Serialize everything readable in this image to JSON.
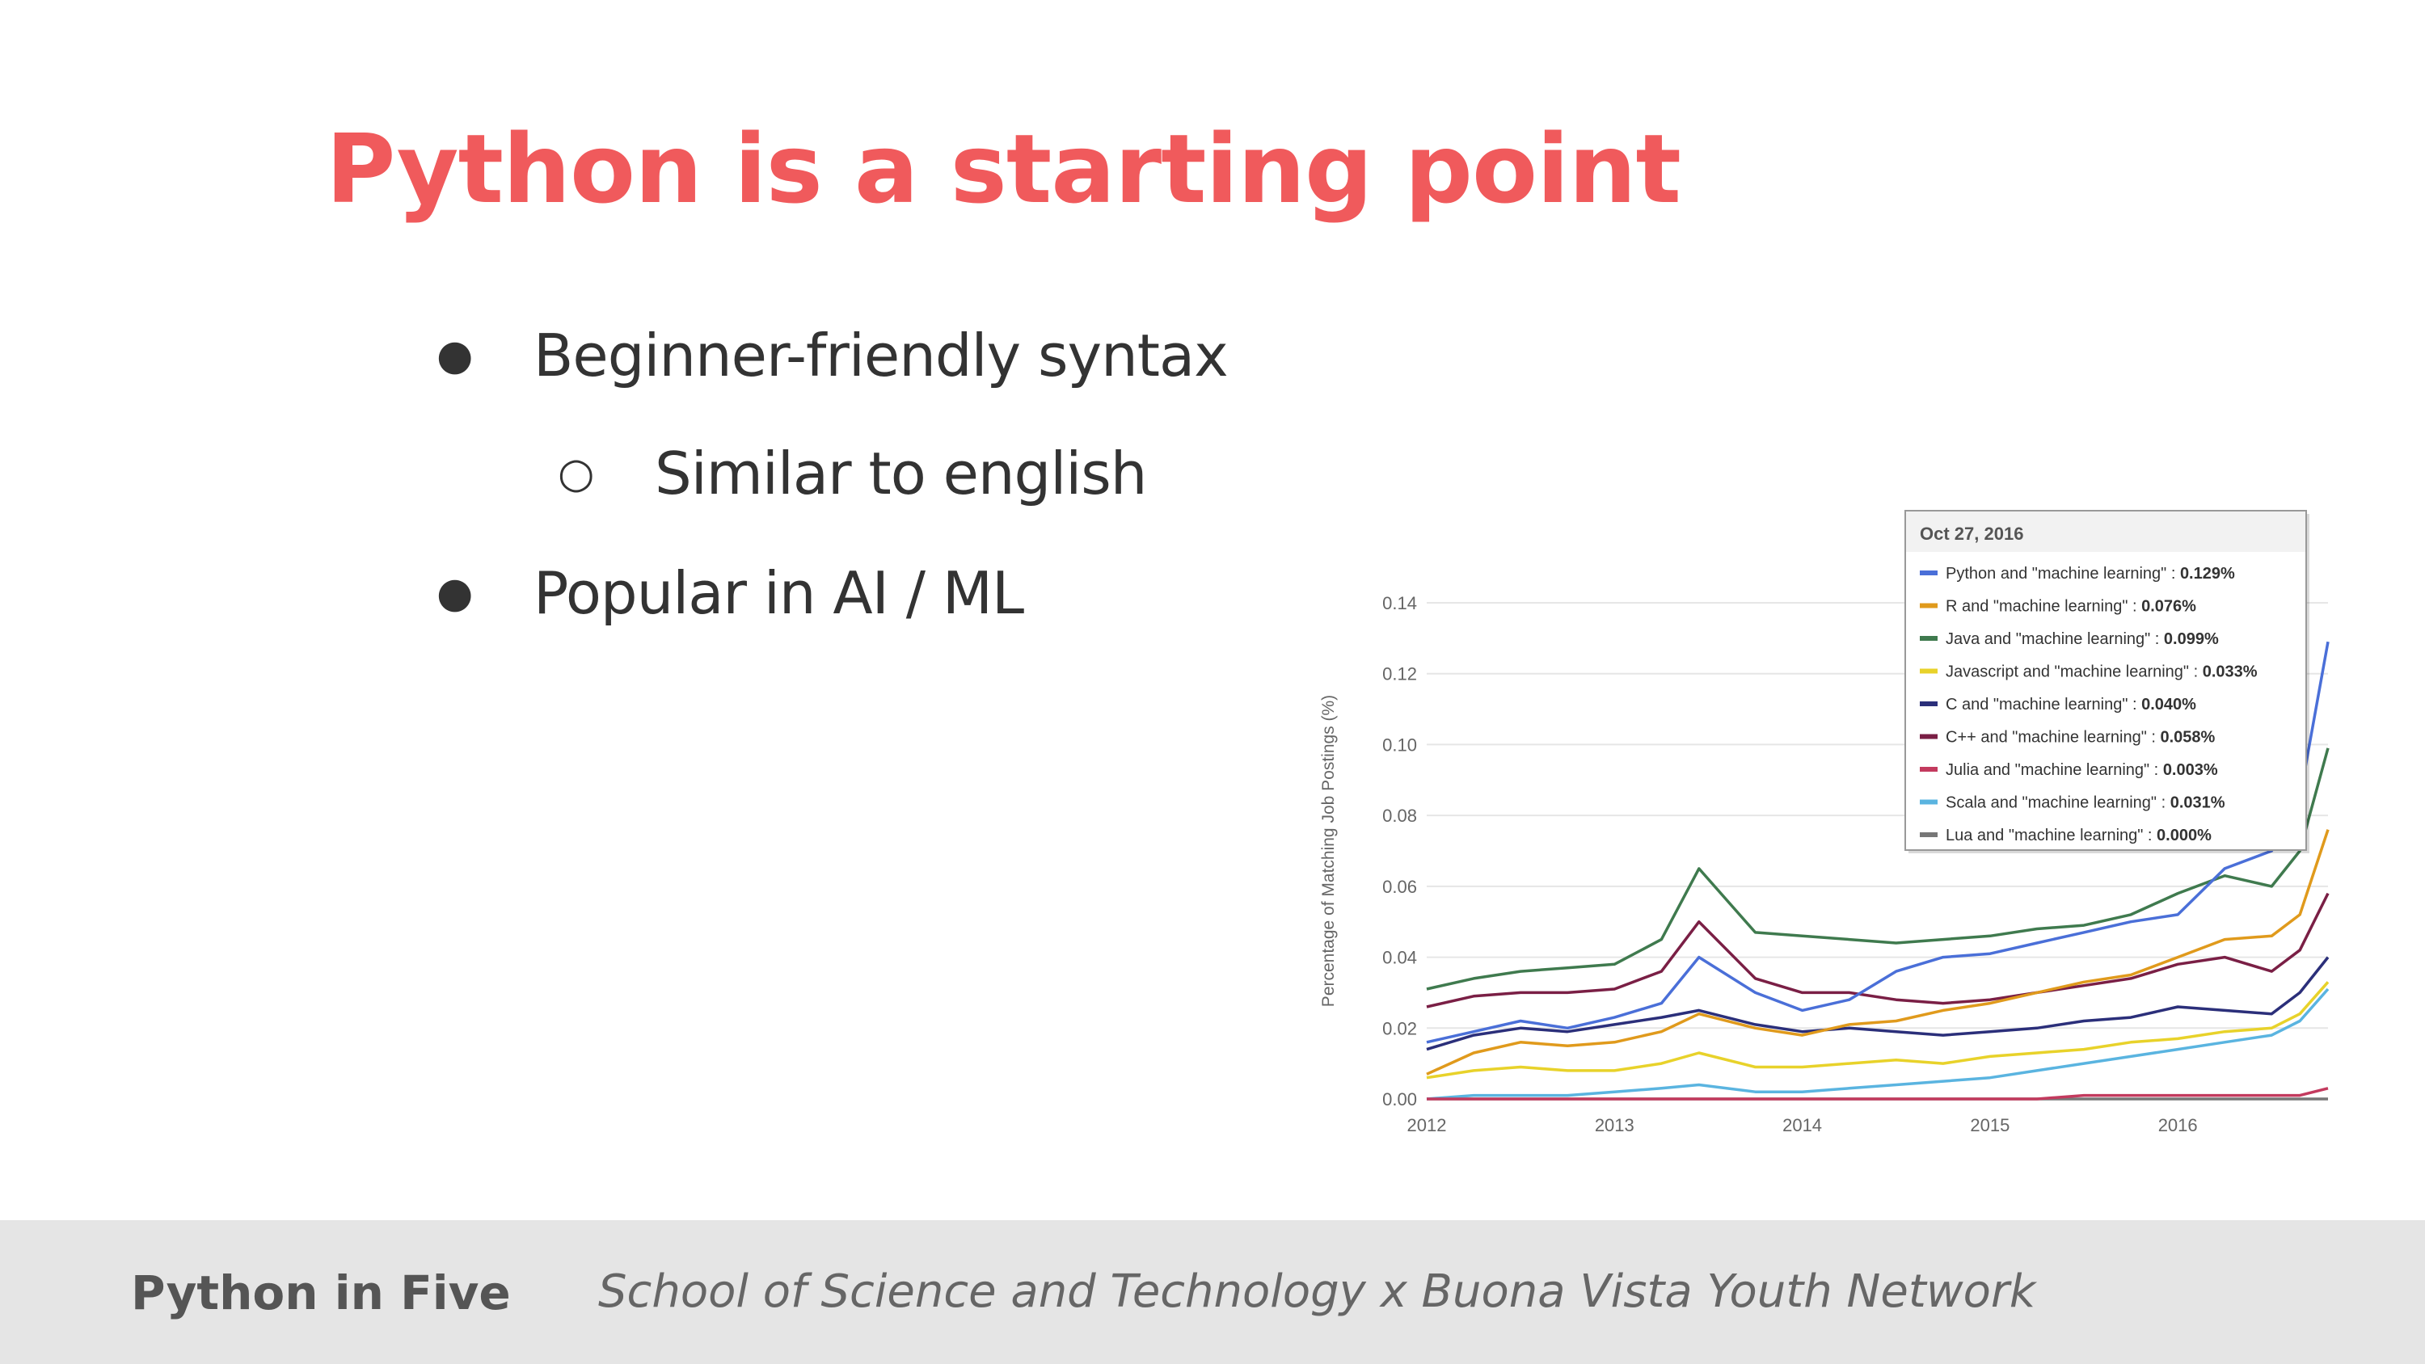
{
  "slide": {
    "title": "Python is a starting point",
    "bullets": [
      {
        "marker": "●",
        "text": "Beginner-friendly syntax"
      },
      {
        "marker": "○",
        "text": "Similar to english"
      },
      {
        "marker": "●",
        "text": "Popular in AI / ML"
      }
    ]
  },
  "footer": {
    "brand": "Python in Five",
    "subtitle": "School of Science and Technology x Buona Vista Youth Network"
  },
  "chart_data": {
    "type": "line",
    "ylabel": "Percentage of Matching Job Postings (%)",
    "xlabel": "",
    "x_ticks": [
      "2012",
      "2013",
      "2014",
      "2015",
      "2016"
    ],
    "y_ticks": [
      "0.00",
      "0.02",
      "0.04",
      "0.06",
      "0.08",
      "0.10",
      "0.12",
      "0.14"
    ],
    "ylim": [
      0,
      0.14
    ],
    "xlim": [
      2012,
      2016.8
    ],
    "grid": true,
    "tooltip": {
      "date": "Oct 27, 2016",
      "entries": [
        {
          "label": "Python and \"machine learning\"",
          "value": "0.129%",
          "color": "#4a6fd8"
        },
        {
          "label": "R and \"machine learning\"",
          "value": "0.076%",
          "color": "#e09a1c"
        },
        {
          "label": "Java and \"machine learning\"",
          "value": "0.099%",
          "color": "#3f7a4e"
        },
        {
          "label": "Javascript and \"machine learning\"",
          "value": "0.033%",
          "color": "#e8d22a"
        },
        {
          "label": "C and \"machine learning\"",
          "value": "0.040%",
          "color": "#2b2f7a"
        },
        {
          "label": "C++ and \"machine learning\"",
          "value": "0.058%",
          "color": "#7a1f45"
        },
        {
          "label": "Julia and \"machine learning\"",
          "value": "0.003%",
          "color": "#c33a5e"
        },
        {
          "label": "Scala and \"machine learning\"",
          "value": "0.031%",
          "color": "#5ab4e0"
        },
        {
          "label": "Lua and \"machine learning\"",
          "value": "0.000%",
          "color": "#777777"
        }
      ]
    },
    "x": [
      2012.0,
      2012.25,
      2012.5,
      2012.75,
      2013.0,
      2013.25,
      2013.45,
      2013.75,
      2014.0,
      2014.25,
      2014.5,
      2014.75,
      2015.0,
      2015.25,
      2015.5,
      2015.75,
      2016.0,
      2016.25,
      2016.5,
      2016.65,
      2016.8
    ],
    "series": [
      {
        "name": "Python and \"machine learning\"",
        "color": "#4a6fd8",
        "values": [
          0.016,
          0.019,
          0.022,
          0.02,
          0.023,
          0.027,
          0.04,
          0.03,
          0.025,
          0.028,
          0.036,
          0.04,
          0.041,
          0.044,
          0.047,
          0.05,
          0.052,
          0.065,
          0.07,
          0.085,
          0.129
        ]
      },
      {
        "name": "R and \"machine learning\"",
        "color": "#e09a1c",
        "values": [
          0.007,
          0.013,
          0.016,
          0.015,
          0.016,
          0.019,
          0.024,
          0.02,
          0.018,
          0.021,
          0.022,
          0.025,
          0.027,
          0.03,
          0.033,
          0.035,
          0.04,
          0.045,
          0.046,
          0.052,
          0.076
        ]
      },
      {
        "name": "Java and \"machine learning\"",
        "color": "#3f7a4e",
        "values": [
          0.031,
          0.034,
          0.036,
          0.037,
          0.038,
          0.045,
          0.065,
          0.047,
          0.046,
          0.045,
          0.044,
          0.045,
          0.046,
          0.048,
          0.049,
          0.052,
          0.058,
          0.063,
          0.06,
          0.07,
          0.099
        ]
      },
      {
        "name": "Javascript and \"machine learning\"",
        "color": "#e8d22a",
        "values": [
          0.006,
          0.008,
          0.009,
          0.008,
          0.008,
          0.01,
          0.013,
          0.009,
          0.009,
          0.01,
          0.011,
          0.01,
          0.012,
          0.013,
          0.014,
          0.016,
          0.017,
          0.019,
          0.02,
          0.024,
          0.033
        ]
      },
      {
        "name": "C and \"machine learning\"",
        "color": "#2b2f7a",
        "values": [
          0.014,
          0.018,
          0.02,
          0.019,
          0.021,
          0.023,
          0.025,
          0.021,
          0.019,
          0.02,
          0.019,
          0.018,
          0.019,
          0.02,
          0.022,
          0.023,
          0.026,
          0.025,
          0.024,
          0.03,
          0.04
        ]
      },
      {
        "name": "C++ and \"machine learning\"",
        "color": "#7a1f45",
        "values": [
          0.026,
          0.029,
          0.03,
          0.03,
          0.031,
          0.036,
          0.05,
          0.034,
          0.03,
          0.03,
          0.028,
          0.027,
          0.028,
          0.03,
          0.032,
          0.034,
          0.038,
          0.04,
          0.036,
          0.042,
          0.058
        ]
      },
      {
        "name": "Julia and \"machine learning\"",
        "color": "#c33a5e",
        "values": [
          0.0,
          0.0,
          0.0,
          0.0,
          0.0,
          0.0,
          0.0,
          0.0,
          0.0,
          0.0,
          0.0,
          0.0,
          0.0,
          0.0,
          0.001,
          0.001,
          0.001,
          0.001,
          0.001,
          0.001,
          0.003
        ]
      },
      {
        "name": "Scala and \"machine learning\"",
        "color": "#5ab4e0",
        "values": [
          0.0,
          0.001,
          0.001,
          0.001,
          0.002,
          0.003,
          0.004,
          0.002,
          0.002,
          0.003,
          0.004,
          0.005,
          0.006,
          0.008,
          0.01,
          0.012,
          0.014,
          0.016,
          0.018,
          0.022,
          0.031
        ]
      },
      {
        "name": "Lua and \"machine learning\"",
        "color": "#777777",
        "values": [
          0.0,
          0.0,
          0.0,
          0.0,
          0.0,
          0.0,
          0.0,
          0.0,
          0.0,
          0.0,
          0.0,
          0.0,
          0.0,
          0.0,
          0.0,
          0.0,
          0.0,
          0.0,
          0.0,
          0.0,
          0.0
        ]
      }
    ]
  }
}
